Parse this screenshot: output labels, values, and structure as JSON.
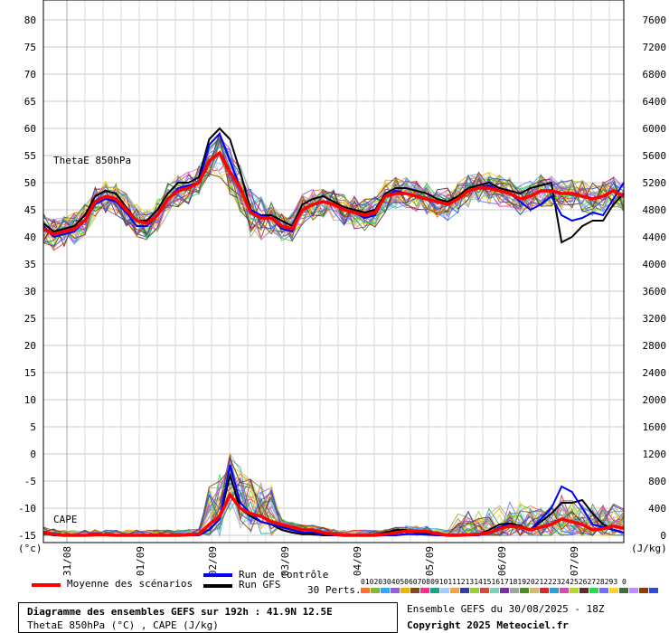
{
  "chart_data": {
    "type": "line",
    "left_axis": {
      "ticks": [
        80,
        75,
        70,
        65,
        60,
        55,
        50,
        45,
        40,
        35,
        30,
        25,
        20,
        15,
        10,
        5,
        0,
        -5,
        -10,
        -15
      ],
      "unit_label": "(°c)",
      "ylim": [
        -15,
        82
      ]
    },
    "right_axis": {
      "ticks": [
        7600,
        7200,
        6800,
        6400,
        6000,
        5600,
        5200,
        4800,
        4400,
        4000,
        3600,
        3200,
        2800,
        2400,
        2000,
        1600,
        1200,
        800,
        400,
        0
      ],
      "unit_label": "(J/kg)"
    },
    "x_tick_labels": [
      "31/08",
      "01/09",
      "02/09",
      "03/09",
      "04/09",
      "05/09",
      "06/09",
      "07/09"
    ],
    "series_labels": {
      "theta": "ThetaE 850hPa",
      "cape": "CAPE"
    },
    "theta_mean": [
      41.5,
      40.5,
      41,
      41.5,
      43,
      46.5,
      47.5,
      47,
      45,
      43,
      42.5,
      44,
      47,
      48.5,
      49,
      50,
      54,
      55.5,
      52,
      49,
      44.5,
      43.5,
      43.5,
      42,
      41.5,
      45,
      46,
      46.5,
      46,
      45,
      44.5,
      44,
      44.5,
      47.5,
      48,
      48,
      47.5,
      47,
      46.5,
      46,
      47,
      48.5,
      49,
      49,
      48.5,
      48,
      47,
      47.5,
      48.5,
      48.5,
      48,
      48,
      47.5,
      47,
      47.5,
      48.5,
      47.5
    ],
    "theta_control": [
      42,
      40,
      40.5,
      41,
      43,
      46,
      47,
      46.5,
      44.5,
      42,
      42,
      44,
      47,
      49,
      49.5,
      50,
      57,
      59,
      54,
      49,
      45,
      44,
      43.5,
      41.5,
      41,
      45,
      46,
      46.5,
      46,
      45,
      44.5,
      43.5,
      44,
      47.5,
      48.5,
      48,
      47.5,
      47,
      46.5,
      46,
      47,
      48.5,
      49,
      49.5,
      48.5,
      48,
      46.5,
      45,
      46,
      47.5,
      44,
      43,
      43.5,
      44.5,
      44,
      47,
      50
    ],
    "theta_gfs": [
      42.5,
      41,
      41.5,
      42,
      44,
      47.5,
      48.5,
      48,
      45.5,
      43,
      43,
      45,
      48,
      50,
      50,
      51,
      58,
      60,
      58,
      52,
      45,
      44,
      44,
      43,
      42,
      46,
      47,
      47.5,
      46.5,
      45.5,
      45,
      44.5,
      45,
      48,
      49,
      49,
      48.5,
      48,
      47,
      46.5,
      47.5,
      49,
      49.5,
      50,
      49,
      48.5,
      48,
      49,
      49.5,
      50,
      39,
      40,
      42,
      43,
      43,
      46,
      48
    ],
    "cape_mean": [
      -14.4,
      -14.8,
      -15,
      -15,
      -15,
      -14.9,
      -14.9,
      -15,
      -15,
      -15,
      -15,
      -15,
      -15,
      -15,
      -14.9,
      -14.8,
      -13,
      -11.5,
      -7.5,
      -10,
      -11,
      -11.5,
      -12.5,
      -13,
      -13.5,
      -14,
      -14,
      -14.5,
      -14.8,
      -15,
      -15,
      -15,
      -15,
      -14.8,
      -14.5,
      -14.2,
      -14.2,
      -14.3,
      -14.7,
      -15,
      -15,
      -14.9,
      -14.8,
      -14.5,
      -13.8,
      -13.3,
      -13.5,
      -14,
      -13.5,
      -13,
      -12,
      -12.5,
      -13,
      -14,
      -13.8,
      -13.3,
      -13.7
    ],
    "cape_control": [
      -14.5,
      -14.9,
      -15,
      -15,
      -15,
      -15,
      -15,
      -15,
      -15,
      -15,
      -15,
      -15,
      -15,
      -15,
      -15,
      -15,
      -14,
      -12,
      -2,
      -9,
      -11,
      -12.5,
      -13,
      -13.5,
      -14,
      -14.5,
      -14.5,
      -14.8,
      -15,
      -15,
      -15,
      -15,
      -15,
      -15,
      -15,
      -14.8,
      -14.8,
      -14.9,
      -15,
      -15,
      -15,
      -15,
      -15,
      -14.5,
      -13.5,
      -13,
      -13.5,
      -14,
      -12,
      -10,
      -6,
      -7,
      -10,
      -13,
      -13.5,
      -14,
      -14.5
    ],
    "cape_gfs": [
      -14.6,
      -15,
      -15,
      -15,
      -15,
      -15,
      -15,
      -15,
      -15,
      -15,
      -15,
      -15,
      -15,
      -15,
      -15,
      -15,
      -14,
      -12,
      -4,
      -10,
      -11.5,
      -12.5,
      -13,
      -14,
      -14.5,
      -14.8,
      -14.8,
      -15,
      -15,
      -15,
      -15,
      -15,
      -15,
      -14.5,
      -14,
      -14,
      -14.5,
      -14.7,
      -15,
      -15,
      -15,
      -15,
      -14.8,
      -14,
      -13,
      -12.8,
      -13.2,
      -14,
      -12.5,
      -11,
      -9,
      -9,
      -8.5,
      -11,
      -13,
      -14,
      -14.5
    ],
    "colors": {
      "mean": "#ff0000",
      "control": "#0000ff",
      "gfs": "#000000",
      "grid": "#c8c8c8",
      "perts": [
        "#ff6f2d",
        "#83b73b",
        "#2da7ff",
        "#9a5ed1",
        "#e9b700",
        "#7f4b20",
        "#ff2d8e",
        "#16a58d",
        "#9bcfff",
        "#f2a24b",
        "#3c3c99",
        "#9bcc3a",
        "#d14b3c",
        "#7ad3b9",
        "#7b2fa6",
        "#a3a3a3",
        "#4b8d2d",
        "#d6b96f",
        "#d22d2d",
        "#2d9ed6",
        "#d64bb3",
        "#b9d62d",
        "#5c2d2d",
        "#2dd655",
        "#6f6fff",
        "#ffd12d",
        "#3c6f3c",
        "#c08bff",
        "#8b3c00",
        "#2d4bd6"
      ]
    }
  },
  "legend": {
    "mean_label": "Moyenne des scénarios",
    "control_label": "Run de contrôle",
    "gfs_label": "Run GFS",
    "perts_label": "30 Perts.",
    "pert_numbers": "01020304050607080910111213141516171819202122232425262728293 0"
  },
  "footer": {
    "title_line": "Diagramme des ensembles GEFS sur 192h : 41.9N 12.5E",
    "subtitle_line": "ThetaE 850hPa (°C) , CAPE (J/kg)",
    "ensemble_date": "Ensemble GEFS du 30/08/2025 - 18Z",
    "copyright": "Copyright 2025 Meteociel.fr"
  }
}
